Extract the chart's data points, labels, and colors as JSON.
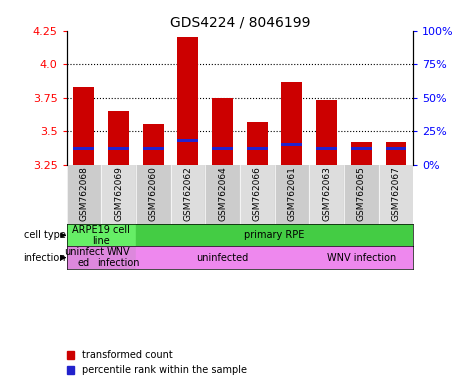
{
  "title": "GDS4224 / 8046199",
  "samples": [
    "GSM762068",
    "GSM762069",
    "GSM762060",
    "GSM762062",
    "GSM762064",
    "GSM762066",
    "GSM762061",
    "GSM762063",
    "GSM762065",
    "GSM762067"
  ],
  "transformed_counts": [
    3.83,
    3.65,
    3.55,
    4.2,
    3.75,
    3.57,
    3.87,
    3.73,
    3.42,
    3.42
  ],
  "percentile_ranks_pct": [
    12,
    12,
    12,
    18,
    12,
    12,
    15,
    12,
    12,
    12
  ],
  "y_min": 3.25,
  "y_max": 4.25,
  "y_ticks": [
    3.25,
    3.5,
    3.75,
    4.0,
    4.25
  ],
  "y2_ticks": [
    0,
    25,
    50,
    75,
    100
  ],
  "bar_color": "#cc0000",
  "blue_color": "#2222cc",
  "cell_groups": [
    {
      "label": "ARPE19 cell\nline",
      "start": 0,
      "end": 2,
      "color": "#66ee66"
    },
    {
      "label": "primary RPE",
      "start": 2,
      "end": 10,
      "color": "#44cc44"
    }
  ],
  "infection_groups": [
    {
      "label": "uninfect\ned",
      "start": 0,
      "end": 1,
      "color": "#dd88dd"
    },
    {
      "label": "WNV\ninfection",
      "start": 1,
      "end": 2,
      "color": "#dd88dd"
    },
    {
      "label": "uninfected",
      "start": 2,
      "end": 7,
      "color": "#ee88ee"
    },
    {
      "label": "WNV infection",
      "start": 7,
      "end": 10,
      "color": "#ee88ee"
    }
  ],
  "legend_items": [
    {
      "color": "#cc0000",
      "label": "transformed count"
    },
    {
      "color": "#2222cc",
      "label": "percentile rank within the sample"
    }
  ],
  "cell_type_row_label": "cell type",
  "infection_row_label": "infection",
  "bar_width": 0.6,
  "blue_bar_height": 0.018
}
